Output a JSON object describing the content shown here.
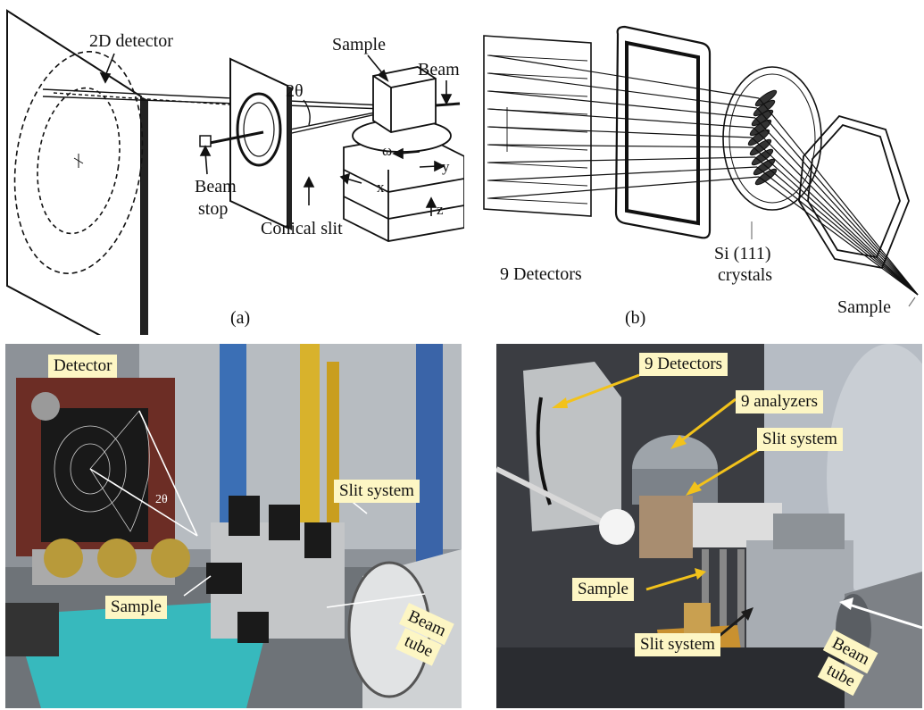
{
  "panel_a": {
    "detector": "2D detector",
    "sample": "Sample",
    "beam": "Beam",
    "two_theta": "2θ",
    "omega": "ω",
    "y": "y",
    "x": "x",
    "z": "z",
    "beam_stop_1": "Beam",
    "beam_stop_2": "stop",
    "conical_slit": "Conical slit",
    "caption": "(a)"
  },
  "panel_b": {
    "detectors": "9 Detectors",
    "crystals_1": "Si (111)",
    "crystals_2": "crystals",
    "sample": "Sample",
    "caption": "(b)"
  },
  "photo_c": {
    "detector": "Detector",
    "slit_system": "Slit system",
    "sample": "Sample",
    "beam_tube_1": "Beam",
    "beam_tube_2": "tube",
    "two_theta": "2θ"
  },
  "photo_d": {
    "detectors": "9 Detectors",
    "analyzers": "9 analyzers",
    "slit_system_top": "Slit system",
    "sample": "Sample",
    "slit_system_bottom": "Slit system",
    "beam_tube_1": "Beam",
    "beam_tube_2": "tube"
  },
  "colors": {
    "label_bg": "#fdf6c4",
    "arrow_yellow": "#f2c21b",
    "panel_c_bg": "#7c8288",
    "panel_d_bg": "#4a4d52"
  }
}
